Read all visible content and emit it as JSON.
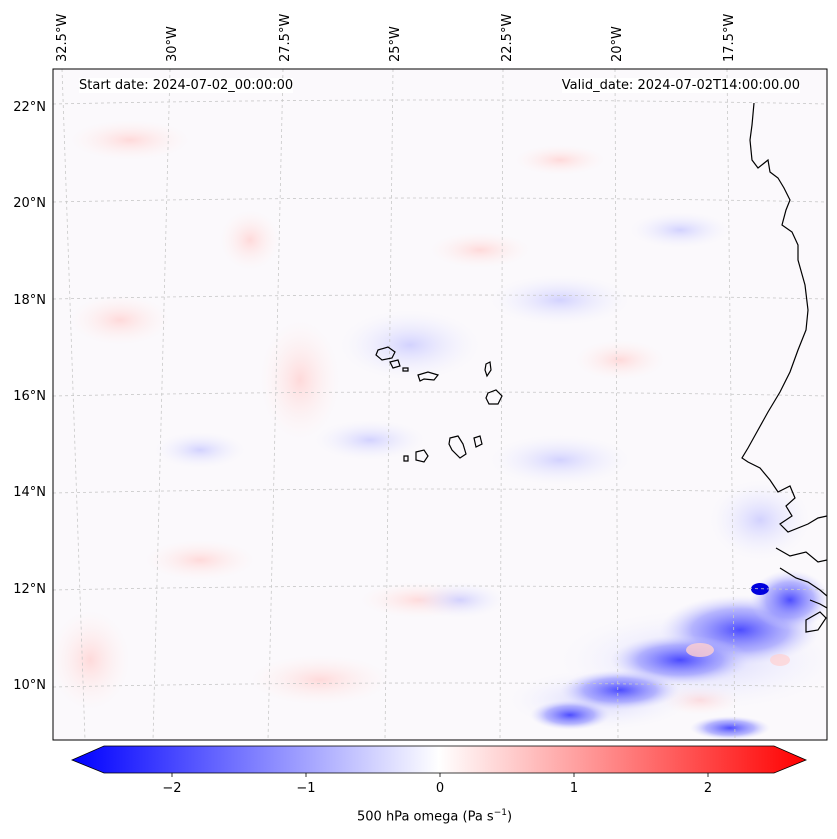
{
  "header": {
    "start_date": "Start date: 2024-07-02_00:00:00",
    "valid_date": "Valid_date: 2024-07-02T14:00:00.00"
  },
  "map": {
    "lon_labels": [
      "32.5°W",
      "30°W",
      "27.5°W",
      "25°W",
      "22.5°W",
      "20°W",
      "17.5°W"
    ],
    "lat_labels": [
      "22°N",
      "20°N",
      "18°N",
      "16°N",
      "14°N",
      "12°N",
      "10°N"
    ],
    "field_colors": {
      "negative": "#0000ff",
      "zero": "#ffffff",
      "positive": "#ff0000"
    },
    "gridline_color": "#cccccc",
    "coastline_color": "#000000"
  },
  "colorbar": {
    "tick_labels": [
      "−2",
      "−1",
      "0",
      "1",
      "2"
    ],
    "label_text": "500 hPa omega (Pa s",
    "label_sup": "−1",
    "label_close": ")"
  }
}
